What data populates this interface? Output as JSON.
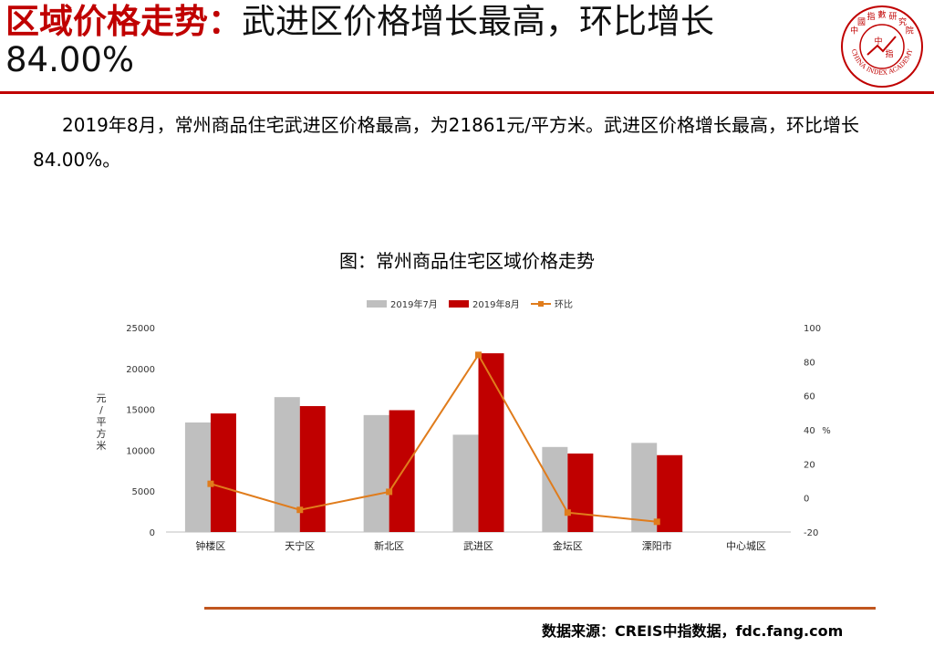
{
  "header": {
    "title_red": "区域价格走势：",
    "title_black": "武进区价格增长最高，环比增长",
    "title_pct": "84.00%",
    "logo_chars": [
      "中",
      "國",
      "指",
      "數",
      "研",
      "究",
      "院"
    ],
    "logo_center": [
      "中",
      "指"
    ],
    "logo_en": "CHINA INDEX ACADEMY"
  },
  "body": {
    "paragraph": "2019年8月，常州商品住宅武进区价格最高，为21861元/平方米。武进区价格增长最高，环比增长84.00%。"
  },
  "chart_title": "图：常州商品住宅区域价格走势",
  "chart_data": {
    "type": "bar",
    "categories": [
      "钟楼区",
      "天宁区",
      "新北区",
      "武进区",
      "金坛区",
      "溧阳市",
      "中心城区"
    ],
    "series": [
      {
        "name": "2019年7月",
        "kind": "bar",
        "axis": "left",
        "color": "#BFBFBF",
        "values": [
          13400,
          16500,
          14300,
          11900,
          10400,
          10900,
          null
        ]
      },
      {
        "name": "2019年8月",
        "kind": "bar",
        "axis": "left",
        "color": "#C00000",
        "values": [
          14500,
          15400,
          14900,
          21861,
          9600,
          9400,
          null
        ]
      },
      {
        "name": "环比",
        "kind": "line",
        "axis": "right",
        "color": "#E07C1C",
        "values": [
          8.3,
          -7.0,
          3.6,
          84.0,
          -8.6,
          -14.0,
          null
        ]
      }
    ],
    "y_left": {
      "label": [
        "元",
        "/",
        "平",
        "方",
        "米"
      ],
      "ticks": [
        "0",
        "5000",
        "10000",
        "15000",
        "20000",
        "25000"
      ],
      "range": [
        0,
        25000
      ]
    },
    "y_right": {
      "label": "%",
      "ticks": [
        "-20",
        "0",
        "20",
        "40",
        "60",
        "80",
        "100"
      ],
      "range": [
        -20,
        100
      ]
    },
    "legend": "top-center",
    "grid": false
  },
  "footer": {
    "source": "数据来源：CREIS中指数据，fdc.fang.com"
  },
  "colors": {
    "accent": "#C00000",
    "bar_prev": "#BFBFBF",
    "bar_curr": "#C00000",
    "line": "#E07C1C",
    "footer_rule": "#C0561F"
  }
}
